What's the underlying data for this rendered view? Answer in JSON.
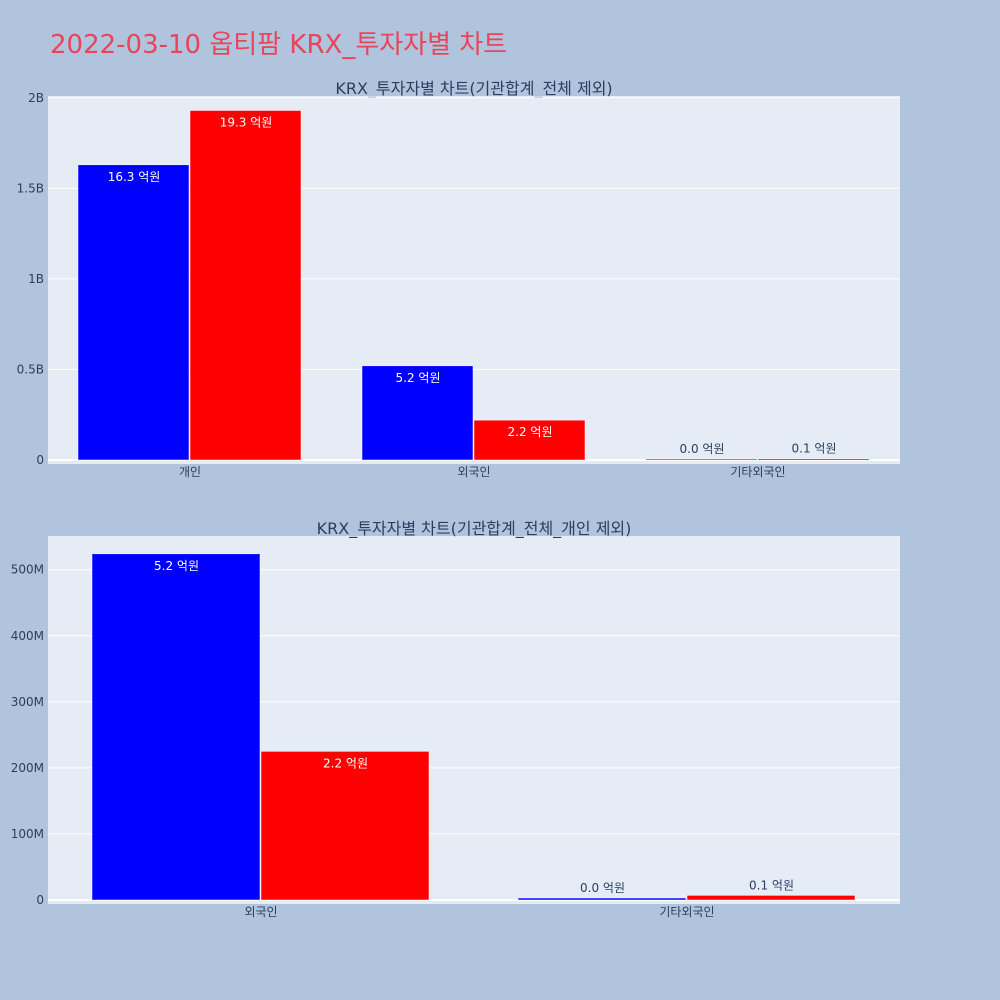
{
  "page": {
    "title": "2022-03-10 옵티팜 KRX_투자자별 차트"
  },
  "colors": {
    "buy": "#0000ff",
    "sell": "#ff0000",
    "plot_bg": "#e5ecf6",
    "page_bg": "#b0c4de",
    "title": "#e8455a"
  },
  "chart_data": [
    {
      "type": "bar",
      "title": "KRX_투자자별 차트(기관합계_전체 제외)",
      "categories": [
        "개인",
        "외국인",
        "기타외국인"
      ],
      "series": [
        {
          "color": "#0000ff",
          "values": [
            1630000000,
            520000000,
            3000000
          ],
          "labels": [
            "16.3 억원",
            "5.2 억원",
            "0.0 억원"
          ]
        },
        {
          "color": "#ff0000",
          "values": [
            1930000000,
            220000000,
            7000000
          ],
          "labels": [
            "19.3 억원",
            "2.2 억원",
            "0.1 억원"
          ]
        }
      ],
      "ylim": [
        0,
        2010000000
      ],
      "yticks": [
        {
          "value": 0,
          "label": "0"
        },
        {
          "value": 500000000,
          "label": "0.5B"
        },
        {
          "value": 1000000000,
          "label": "1B"
        },
        {
          "value": 1500000000,
          "label": "1.5B"
        },
        {
          "value": 2000000000,
          "label": "2B"
        }
      ],
      "grid": true
    },
    {
      "type": "bar",
      "title": "KRX_투자자별 차트(기관합계_전체_개인 제외)",
      "categories": [
        "외국인",
        "기타외국인"
      ],
      "series": [
        {
          "color": "#0000ff",
          "values": [
            524000000,
            3000000
          ],
          "labels": [
            "5.2 억원",
            "0.0 억원"
          ]
        },
        {
          "color": "#ff0000",
          "values": [
            225000000,
            7000000
          ],
          "labels": [
            "2.2 억원",
            "0.1 억원"
          ]
        }
      ],
      "ylim": [
        0,
        551000000
      ],
      "yticks": [
        {
          "value": 0,
          "label": "0"
        },
        {
          "value": 100000000,
          "label": "100M"
        },
        {
          "value": 200000000,
          "label": "200M"
        },
        {
          "value": 300000000,
          "label": "300M"
        },
        {
          "value": 400000000,
          "label": "400M"
        },
        {
          "value": 500000000,
          "label": "500M"
        }
      ],
      "grid": true
    }
  ]
}
